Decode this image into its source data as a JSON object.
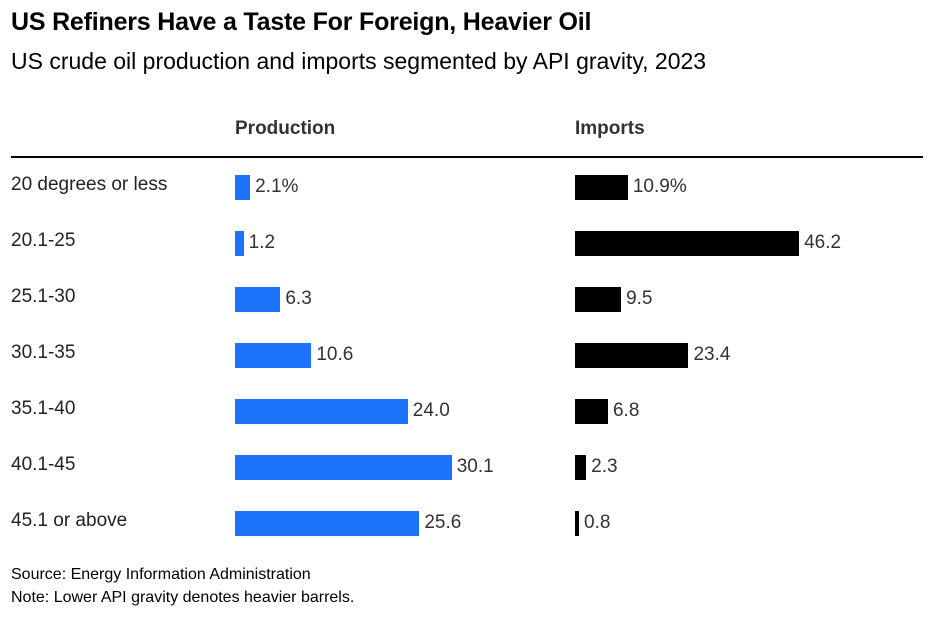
{
  "title": "US Refiners Have a Taste For Foreign, Heavier Oil",
  "subtitle": "US crude oil production and imports segmented by API gravity, 2023",
  "columns": {
    "production": "Production",
    "imports": "Imports"
  },
  "source": "Source: Energy Information Administration",
  "note": "Note: Lower API gravity denotes heavier barrels.",
  "colors": {
    "production": "#1a73f8",
    "imports": "#000000"
  },
  "chart_data": {
    "type": "bar",
    "orientation": "horizontal",
    "categories": [
      "20 degrees or less",
      "20.1-25",
      "25.1-30",
      "30.1-35",
      "35.1-40",
      "40.1-45",
      "45.1 or above"
    ],
    "series": [
      {
        "name": "Production",
        "values": [
          2.1,
          1.2,
          6.3,
          10.6,
          24.0,
          30.1,
          25.6
        ],
        "labels": [
          "2.1%",
          "1.2",
          "6.3",
          "10.6",
          "24.0",
          "30.1",
          "25.6"
        ]
      },
      {
        "name": "Imports",
        "values": [
          10.9,
          46.2,
          9.5,
          23.4,
          6.8,
          2.3,
          0.8
        ],
        "labels": [
          "10.9%",
          "46.2",
          "9.5",
          "23.4",
          "6.8",
          "2.3",
          "0.8"
        ]
      }
    ],
    "unit": "%",
    "grid": false
  }
}
